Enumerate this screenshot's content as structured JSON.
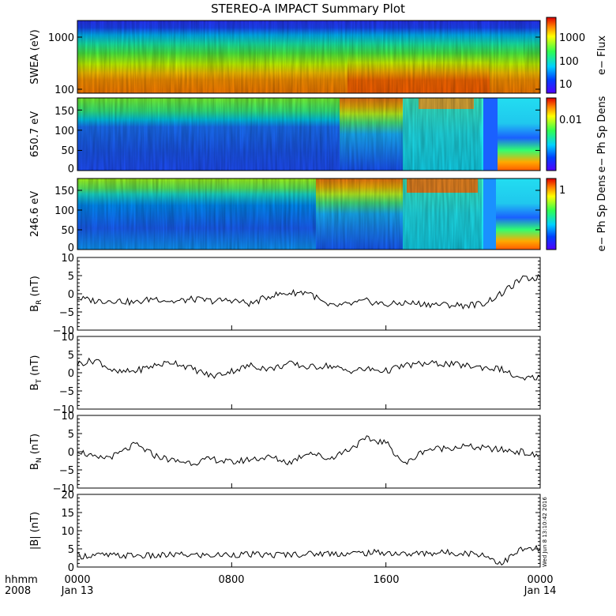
{
  "title": "STEREO-A IMPACT Summary Plot",
  "footer": {
    "hhmm": "hhmm",
    "year": "2008",
    "times": [
      "0000",
      "0800",
      "1600",
      "0000"
    ],
    "dates": [
      "Jan 13",
      "",
      "",
      "Jan 14"
    ]
  },
  "timestamp": "Wed Jun  8 13:10:42 2016",
  "colors": {
    "line": "#000000",
    "background": "#ffffff"
  },
  "chart_data": [
    {
      "type": "heatmap",
      "ylabel": "SWEA (eV)",
      "yscale": "log",
      "yticks": [
        "1000",
        "100"
      ],
      "colorbar_label": "e− Flux",
      "colorbar_ticks": [
        "1000",
        "100",
        "10"
      ],
      "colorbar_scale": "log",
      "description_profile": [
        {
          "energy": 1600,
          "level": 0.05
        },
        {
          "energy": 1000,
          "level": 0.3
        },
        {
          "energy": 500,
          "level": 0.55
        },
        {
          "energy": 250,
          "level": 0.72
        },
        {
          "energy": 100,
          "level": 0.88
        }
      ]
    },
    {
      "type": "heatmap",
      "ylabel": "650.7 eV",
      "ylim": [
        0,
        180
      ],
      "yticks": [
        "150",
        "100",
        "50",
        "0"
      ],
      "colorbar_label": "e− Ph Sp Dens",
      "colorbar_ticks": [
        "0.01"
      ]
    },
    {
      "type": "heatmap",
      "ylabel": "246.6 eV",
      "ylim": [
        0,
        180
      ],
      "yticks": [
        "150",
        "100",
        "50",
        "0"
      ],
      "colorbar_label": "e− Ph Sp Dens",
      "colorbar_ticks": [
        "1"
      ]
    },
    {
      "type": "line",
      "ylabel": "B_R (nT)",
      "ylim": [
        -10,
        10
      ],
      "yticks": [
        "10",
        "5",
        "0",
        "−5",
        "−10"
      ],
      "x": [
        0,
        1,
        2,
        3,
        4,
        5,
        6,
        7,
        8,
        9,
        10,
        11,
        12,
        13,
        14,
        15,
        16,
        17,
        18,
        19,
        20,
        21,
        22,
        23,
        24
      ],
      "y": [
        -1.2,
        -2.0,
        -1.8,
        -2.5,
        -1.2,
        -2.2,
        -1.5,
        -2.0,
        -1.7,
        -2.8,
        -0.5,
        0.2,
        0.5,
        -3.5,
        -3.0,
        -2.0,
        -3.0,
        -2.5,
        -2.8,
        -3.0,
        -3.2,
        -2.8,
        0.0,
        4.0,
        4.5
      ]
    },
    {
      "type": "line",
      "ylabel": "B_T (nT)",
      "ylim": [
        -10,
        10
      ],
      "yticks": [
        "10",
        "5",
        "0",
        "−5",
        "−10"
      ],
      "x": [
        0,
        1,
        2,
        3,
        4,
        5,
        6,
        7,
        8,
        9,
        10,
        11,
        12,
        13,
        14,
        15,
        16,
        17,
        18,
        19,
        20,
        21,
        22,
        23,
        24
      ],
      "y": [
        2.5,
        3.5,
        0.0,
        0.5,
        2.0,
        3.0,
        1.0,
        -1.0,
        0.5,
        2.0,
        1.0,
        2.5,
        1.5,
        2.0,
        0.5,
        1.0,
        0.5,
        2.0,
        2.5,
        2.5,
        2.0,
        1.5,
        1.0,
        -2.0,
        -1.0
      ]
    },
    {
      "type": "line",
      "ylabel": "B_N (nT)",
      "ylim": [
        -10,
        10
      ],
      "yticks": [
        "10",
        "5",
        "0",
        "−5",
        "−10"
      ],
      "x": [
        0,
        1,
        2,
        3,
        4,
        5,
        6,
        7,
        8,
        9,
        10,
        11,
        12,
        13,
        14,
        15,
        16,
        17,
        18,
        19,
        20,
        21,
        22,
        23,
        24
      ],
      "y": [
        0.5,
        -2.0,
        -1.0,
        2.0,
        -1.0,
        -2.5,
        -3.0,
        -2.0,
        -3.0,
        -2.0,
        -1.5,
        -3.0,
        0.0,
        -2.0,
        0.5,
        3.5,
        2.5,
        -3.5,
        0.5,
        1.0,
        1.5,
        1.0,
        0.5,
        0.0,
        -1.5
      ]
    },
    {
      "type": "line",
      "ylabel": "|B| (nT)",
      "ylim": [
        0,
        20
      ],
      "yticks": [
        "20",
        "15",
        "10",
        "5",
        "0"
      ],
      "x": [
        0,
        1,
        2,
        3,
        4,
        5,
        6,
        7,
        8,
        9,
        10,
        11,
        12,
        13,
        14,
        15,
        16,
        17,
        18,
        19,
        20,
        21,
        22,
        23,
        24
      ],
      "y": [
        3.0,
        3.3,
        3.1,
        3.2,
        3.0,
        3.4,
        3.3,
        3.2,
        3.5,
        3.4,
        3.3,
        3.5,
        3.6,
        3.8,
        3.7,
        3.9,
        4.0,
        3.5,
        3.8,
        4.0,
        3.9,
        3.5,
        1.0,
        4.8,
        5.0
      ]
    }
  ]
}
